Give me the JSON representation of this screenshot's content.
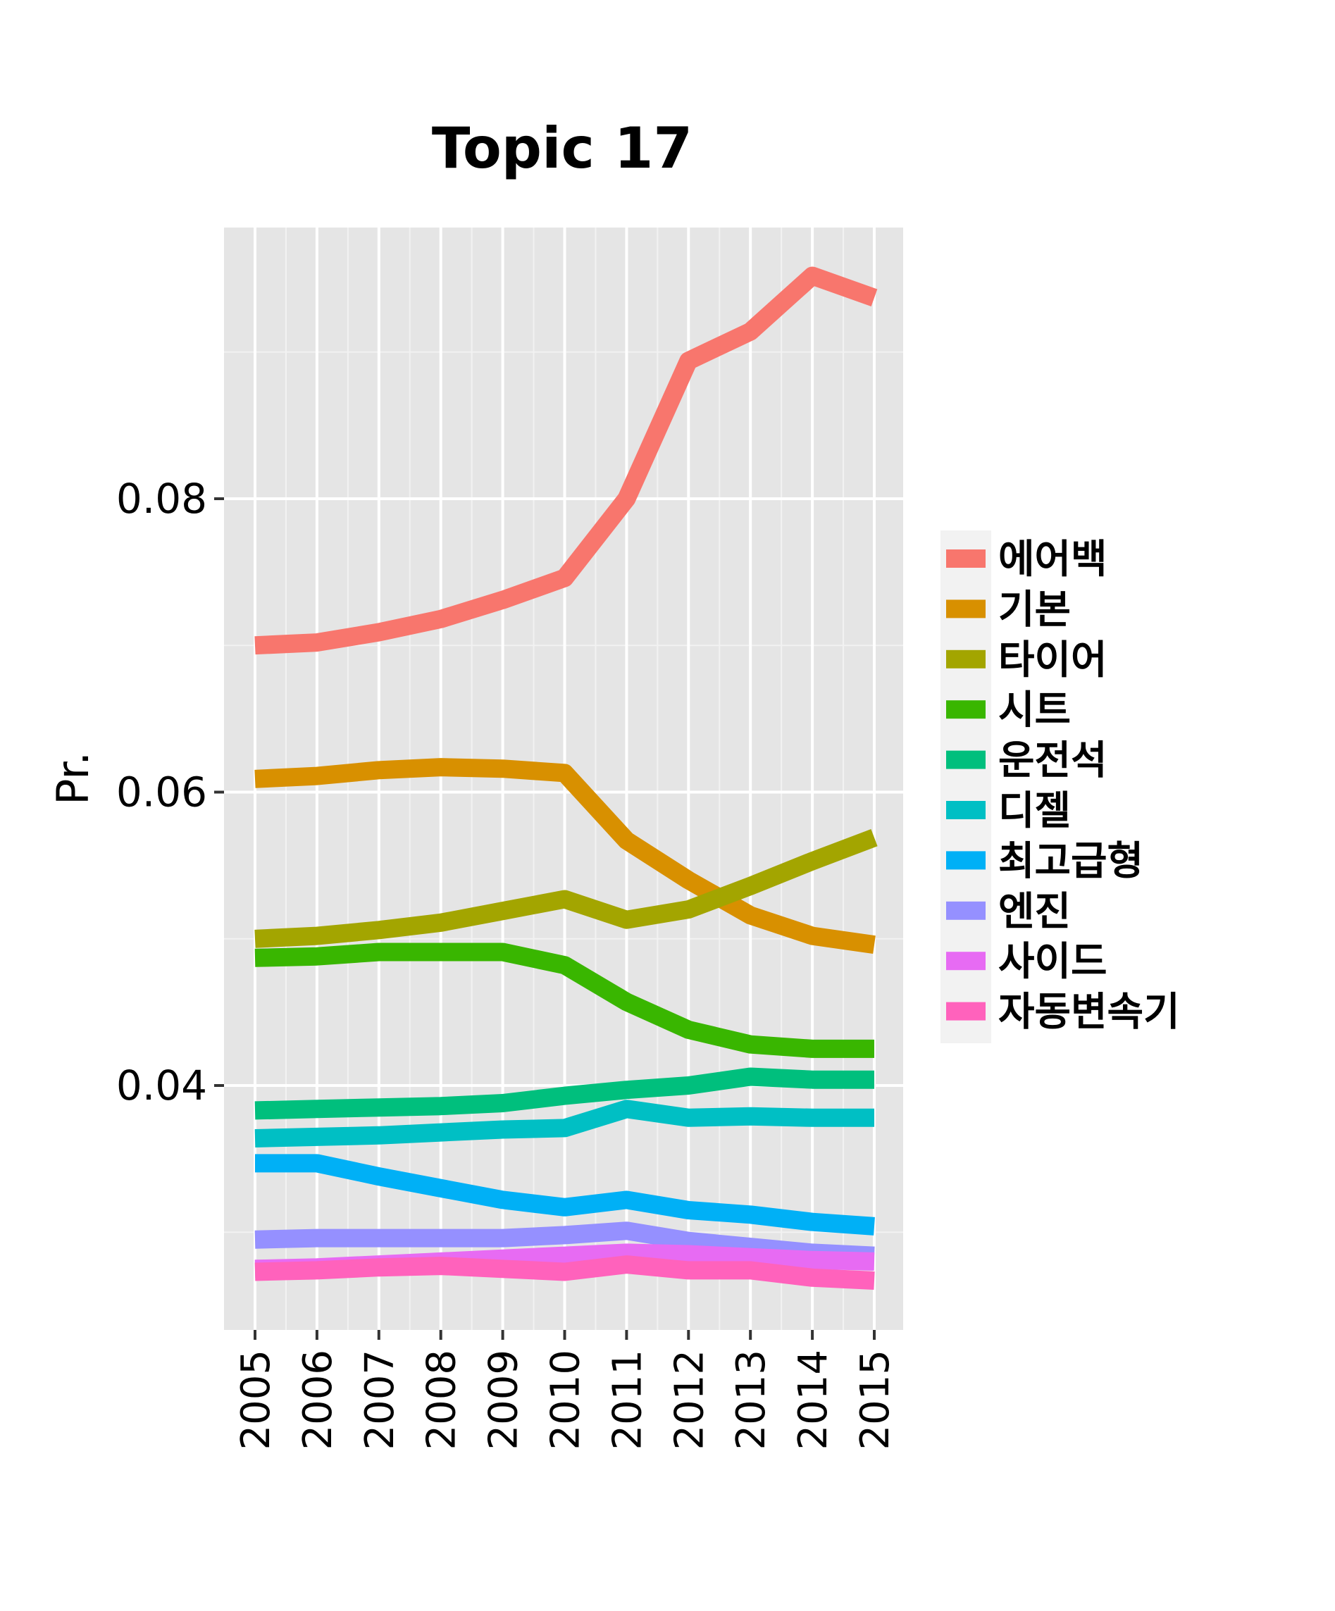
{
  "chart_data": {
    "type": "line",
    "title": "Topic 17",
    "xlabel": "",
    "ylabel": "Pr.",
    "x": [
      2005,
      2006,
      2007,
      2008,
      2009,
      2010,
      2011,
      2012,
      2013,
      2014,
      2015
    ],
    "x_tick_labels": [
      "2005",
      "2006",
      "2007",
      "2008",
      "2009",
      "2010",
      "2011",
      "2012",
      "2013",
      "2014",
      "2015"
    ],
    "y_ticks": [
      0.04,
      0.06,
      0.08
    ],
    "y_tick_labels": [
      "0.04",
      "0.06",
      "0.08"
    ],
    "ylim": [
      0.0226,
      0.0977
    ],
    "grid": true,
    "legend_position": "right",
    "series": [
      {
        "name": "에어백",
        "color": "#F8766D",
        "values": [
          0.07,
          0.0702,
          0.0709,
          0.0718,
          0.0731,
          0.0746,
          0.08,
          0.0894,
          0.0914,
          0.0952,
          0.0937
        ]
      },
      {
        "name": "기본",
        "color": "#D89000",
        "values": [
          0.0609,
          0.0611,
          0.0615,
          0.0617,
          0.0616,
          0.0613,
          0.0567,
          0.054,
          0.0516,
          0.0502,
          0.0496
        ]
      },
      {
        "name": "타이어",
        "color": "#A3A500",
        "values": [
          0.05,
          0.0502,
          0.0506,
          0.0511,
          0.0519,
          0.0527,
          0.0513,
          0.052,
          0.0536,
          0.0553,
          0.0569
        ]
      },
      {
        "name": "시트",
        "color": "#39B600",
        "values": [
          0.0487,
          0.0488,
          0.0491,
          0.0491,
          0.0491,
          0.0482,
          0.0457,
          0.0438,
          0.0428,
          0.0425,
          0.0425
        ]
      },
      {
        "name": "운전석",
        "color": "#00BF7D",
        "values": [
          0.0383,
          0.0384,
          0.0385,
          0.0386,
          0.0388,
          0.0393,
          0.0397,
          0.04,
          0.0406,
          0.0404,
          0.0404
        ]
      },
      {
        "name": "디젤",
        "color": "#00BFC4",
        "values": [
          0.0364,
          0.0365,
          0.0366,
          0.0368,
          0.037,
          0.0371,
          0.0384,
          0.0378,
          0.0379,
          0.0378,
          0.0378
        ]
      },
      {
        "name": "최고급형",
        "color": "#00B0F6",
        "values": [
          0.0347,
          0.0347,
          0.0338,
          0.033,
          0.0322,
          0.0317,
          0.0322,
          0.0315,
          0.0312,
          0.0307,
          0.0304
        ]
      },
      {
        "name": "엔진",
        "color": "#9590FF",
        "values": [
          0.0295,
          0.0296,
          0.0296,
          0.0296,
          0.0296,
          0.0298,
          0.0301,
          0.0294,
          0.029,
          0.0286,
          0.0284
        ]
      },
      {
        "name": "사이드",
        "color": "#E76BF3",
        "values": [
          0.0275,
          0.0276,
          0.0278,
          0.028,
          0.0282,
          0.0284,
          0.0286,
          0.0285,
          0.0283,
          0.0281,
          0.028
        ]
      },
      {
        "name": "자동변속기",
        "color": "#FF62BC",
        "values": [
          0.0273,
          0.0274,
          0.0276,
          0.0277,
          0.0275,
          0.0273,
          0.0278,
          0.0274,
          0.0274,
          0.0269,
          0.0267
        ]
      }
    ]
  }
}
